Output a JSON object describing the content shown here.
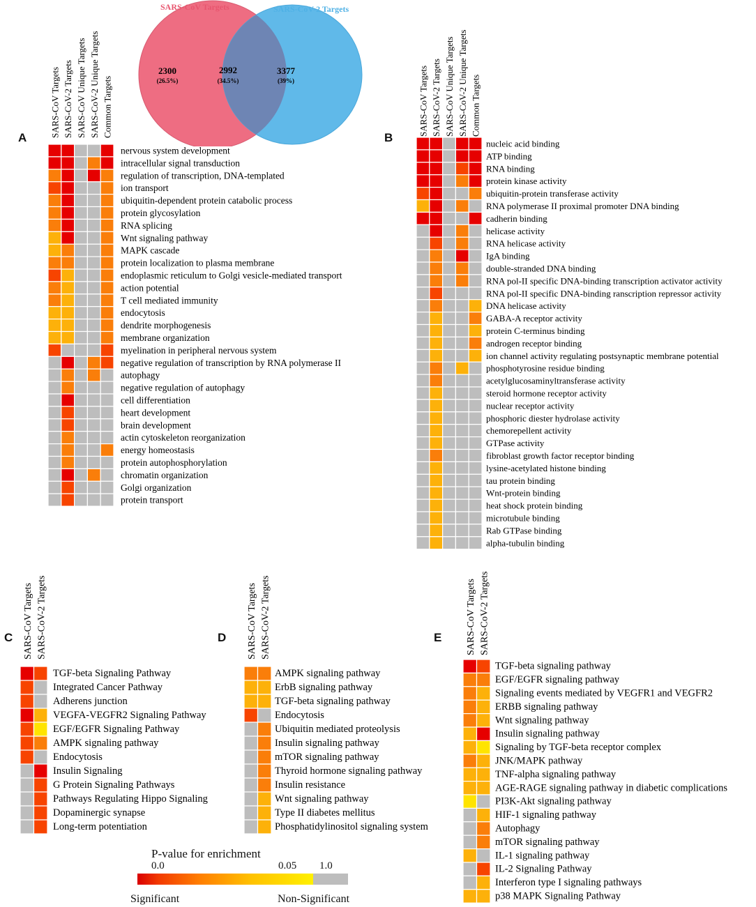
{
  "colors": {
    "sig_strong": "#e60000",
    "sig_orange_red": "#f74400",
    "sig_orange": "#fa7e0a",
    "sig_amber": "#fdb10a",
    "sig_yellow": "#ffe400",
    "non_sig": "#bdbdbd",
    "venn_left": "#ee6d82",
    "venn_right": "#60b9e9",
    "venn_overlap": "#6e85b4",
    "venn_left_title": "#e8566f",
    "venn_right_title": "#4fb1e5"
  },
  "venn": {
    "left_title": "SARS-CoV Targets",
    "right_title": "SARS-CoV-2 Targets",
    "left_count": "2300",
    "left_pct": "(26.5%)",
    "overlap_count": "2992",
    "overlap_pct": "(34.5%)",
    "right_count": "3377",
    "right_pct": "(39%)"
  },
  "legend": {
    "title": "P-value for enrichment",
    "tick_low": "0.0",
    "tick_mid": "0.05",
    "tick_high": "1.0",
    "label_sig": "Significant",
    "label_nonsig": "Non-Significant"
  },
  "chart_data": [
    {
      "type": "heatmap",
      "panel": "A",
      "color_key": {
        "R": "strongly significant (red)",
        "Q": "orange-red",
        "O": "orange",
        "M": "amber",
        "Y": "yellow",
        "G": "non-significant (grey)"
      },
      "columns": [
        "SARS-CoV Targets",
        "SARS-CoV-2 Targets",
        "SARS-CoV Unique Targets",
        "SARS-CoV-2 Unique Targets",
        "Common Targets"
      ],
      "rows": [
        {
          "label": "nervous system development",
          "cells": [
            "R",
            "R",
            "G",
            "G",
            "R"
          ]
        },
        {
          "label": "intracellular signal transduction",
          "cells": [
            "R",
            "R",
            "G",
            "O",
            "R"
          ]
        },
        {
          "label": "regulation of transcription, DNA-templated",
          "cells": [
            "O",
            "R",
            "G",
            "R",
            "O"
          ]
        },
        {
          "label": "ion transport",
          "cells": [
            "Q",
            "R",
            "G",
            "G",
            "O"
          ]
        },
        {
          "label": "ubiquitin-dependent protein catabolic process",
          "cells": [
            "O",
            "R",
            "G",
            "G",
            "O"
          ]
        },
        {
          "label": "protein glycosylation",
          "cells": [
            "O",
            "R",
            "G",
            "G",
            "O"
          ]
        },
        {
          "label": "RNA splicing",
          "cells": [
            "O",
            "R",
            "G",
            "G",
            "O"
          ]
        },
        {
          "label": "Wnt signaling pathway",
          "cells": [
            "M",
            "R",
            "G",
            "G",
            "O"
          ]
        },
        {
          "label": "MAPK cascade",
          "cells": [
            "M",
            "O",
            "G",
            "G",
            "O"
          ]
        },
        {
          "label": "protein localization to plasma membrane",
          "cells": [
            "O",
            "O",
            "G",
            "G",
            "O"
          ]
        },
        {
          "label": "endoplasmic reticulum to Golgi vesicle-mediated transport",
          "cells": [
            "Q",
            "M",
            "G",
            "G",
            "O"
          ]
        },
        {
          "label": "action potential",
          "cells": [
            "O",
            "M",
            "G",
            "G",
            "O"
          ]
        },
        {
          "label": "T cell mediated immunity",
          "cells": [
            "O",
            "M",
            "G",
            "G",
            "O"
          ]
        },
        {
          "label": "endocytosis",
          "cells": [
            "M",
            "M",
            "G",
            "G",
            "O"
          ]
        },
        {
          "label": "dendrite morphogenesis",
          "cells": [
            "M",
            "M",
            "G",
            "G",
            "O"
          ]
        },
        {
          "label": "membrane organization",
          "cells": [
            "M",
            "M",
            "G",
            "G",
            "O"
          ]
        },
        {
          "label": "myelination in peripheral nervous system",
          "cells": [
            "Q",
            "G",
            "G",
            "G",
            "Q"
          ]
        },
        {
          "label": "negative regulation of transcription by RNA polymerase II",
          "cells": [
            "G",
            "R",
            "G",
            "O",
            "Q"
          ]
        },
        {
          "label": "autophagy",
          "cells": [
            "G",
            "O",
            "G",
            "O",
            "G"
          ]
        },
        {
          "label": "negative regulation of autophagy",
          "cells": [
            "G",
            "O",
            "G",
            "G",
            "G"
          ]
        },
        {
          "label": "cell differentiation",
          "cells": [
            "G",
            "R",
            "G",
            "G",
            "G"
          ]
        },
        {
          "label": "heart development",
          "cells": [
            "G",
            "Q",
            "G",
            "G",
            "G"
          ]
        },
        {
          "label": "brain development",
          "cells": [
            "G",
            "Q",
            "G",
            "G",
            "G"
          ]
        },
        {
          "label": "actin cytoskeleton reorganization",
          "cells": [
            "G",
            "O",
            "G",
            "G",
            "G"
          ]
        },
        {
          "label": "energy homeostasis",
          "cells": [
            "G",
            "O",
            "G",
            "G",
            "O"
          ]
        },
        {
          "label": "protein autophosphorylation",
          "cells": [
            "G",
            "O",
            "G",
            "G",
            "G"
          ]
        },
        {
          "label": "chromatin organization",
          "cells": [
            "G",
            "R",
            "G",
            "O",
            "G"
          ]
        },
        {
          "label": "Golgi organization",
          "cells": [
            "G",
            "Q",
            "G",
            "G",
            "G"
          ]
        },
        {
          "label": "protein transport",
          "cells": [
            "G",
            "Q",
            "G",
            "G",
            "G"
          ]
        }
      ]
    },
    {
      "type": "heatmap",
      "panel": "B",
      "columns": [
        "SARS-CoV Targets",
        "SARS-CoV-2 Targets",
        "SARS-CoV Unique Targets",
        "SARS-CoV-2 Unique Targets",
        "Common Targets"
      ],
      "rows": [
        {
          "label": "nucleic acid binding",
          "cells": [
            "R",
            "R",
            "G",
            "R",
            "R"
          ]
        },
        {
          "label": "ATP binding",
          "cells": [
            "R",
            "R",
            "G",
            "R",
            "R"
          ]
        },
        {
          "label": "RNA binding",
          "cells": [
            "R",
            "R",
            "G",
            "Q",
            "R"
          ]
        },
        {
          "label": "protein kinase activity",
          "cells": [
            "R",
            "R",
            "G",
            "O",
            "R"
          ]
        },
        {
          "label": "ubiquitin-protein transferase activity",
          "cells": [
            "Q",
            "R",
            "G",
            "G",
            "O"
          ]
        },
        {
          "label": " RNA polymerase II proximal promoter DNA binding",
          "cells": [
            "M",
            "R",
            "G",
            "O",
            "G"
          ]
        },
        {
          "label": "cadherin binding",
          "cells": [
            "R",
            "R",
            "G",
            "G",
            "R"
          ]
        },
        {
          "label": "helicase activity",
          "cells": [
            "G",
            "R",
            "G",
            "O",
            "G"
          ]
        },
        {
          "label": "RNA helicase activity",
          "cells": [
            "G",
            "Q",
            "G",
            "O",
            "G"
          ]
        },
        {
          "label": "IgA binding",
          "cells": [
            "G",
            "O",
            "G",
            "R",
            "G"
          ]
        },
        {
          "label": "double-stranded DNA binding",
          "cells": [
            "G",
            "O",
            "G",
            "O",
            "G"
          ]
        },
        {
          "label": "RNA pol-II specific DNA-binding transcription activator activity",
          "cells": [
            "G",
            "O",
            "G",
            "O",
            "G"
          ]
        },
        {
          "label": " RNA pol-II specific DNA-binding ranscription repressor activity",
          "cells": [
            "G",
            "Q",
            "G",
            "G",
            "G"
          ]
        },
        {
          "label": "DNA helicase activity",
          "cells": [
            "G",
            "O",
            "G",
            "G",
            "M"
          ]
        },
        {
          "label": "GABA-A receptor activity",
          "cells": [
            "G",
            "M",
            "G",
            "G",
            "O"
          ]
        },
        {
          "label": "protein C-terminus binding",
          "cells": [
            "G",
            "M",
            "G",
            "G",
            "M"
          ]
        },
        {
          "label": "androgen receptor binding",
          "cells": [
            "G",
            "M",
            "G",
            "G",
            "O"
          ]
        },
        {
          "label": "ion channel activity regulating postsynaptic membrane potential",
          "cells": [
            "G",
            "M",
            "G",
            "G",
            "M"
          ]
        },
        {
          "label": "phosphotyrosine residue binding",
          "cells": [
            "G",
            "O",
            "G",
            "M",
            "G"
          ]
        },
        {
          "label": "acetylglucosaminyltransferase activity",
          "cells": [
            "G",
            "O",
            "G",
            "G",
            "G"
          ]
        },
        {
          "label": "steroid hormone receptor activity",
          "cells": [
            "G",
            "M",
            "G",
            "G",
            "G"
          ]
        },
        {
          "label": "nuclear receptor activity",
          "cells": [
            "G",
            "M",
            "G",
            "G",
            "G"
          ]
        },
        {
          "label": "phosphoric diester hydrolase activity",
          "cells": [
            "G",
            "M",
            "G",
            "G",
            "G"
          ]
        },
        {
          "label": "chemorepellent activity",
          "cells": [
            "G",
            "M",
            "G",
            "G",
            "G"
          ]
        },
        {
          "label": "GTPase activity",
          "cells": [
            "G",
            "M",
            "G",
            "G",
            "G"
          ]
        },
        {
          "label": "fibroblast growth factor receptor binding",
          "cells": [
            "G",
            "O",
            "G",
            "G",
            "G"
          ]
        },
        {
          "label": "lysine-acetylated histone binding",
          "cells": [
            "G",
            "M",
            "G",
            "G",
            "G"
          ]
        },
        {
          "label": "tau protein binding",
          "cells": [
            "G",
            "M",
            "G",
            "G",
            "G"
          ]
        },
        {
          "label": "Wnt-protein binding",
          "cells": [
            "G",
            "M",
            "G",
            "G",
            "G"
          ]
        },
        {
          "label": "heat shock protein binding",
          "cells": [
            "G",
            "M",
            "G",
            "G",
            "G"
          ]
        },
        {
          "label": "microtubule binding",
          "cells": [
            "G",
            "M",
            "G",
            "G",
            "G"
          ]
        },
        {
          "label": "Rab GTPase binding",
          "cells": [
            "G",
            "M",
            "G",
            "G",
            "G"
          ]
        },
        {
          "label": "alpha-tubulin binding",
          "cells": [
            "G",
            "M",
            "G",
            "G",
            "G"
          ]
        }
      ]
    },
    {
      "type": "heatmap",
      "panel": "C",
      "columns": [
        "SARS-CoV Targets",
        "SARS-CoV-2 Targets"
      ],
      "rows": [
        {
          "label": "TGF-beta Signaling Pathway",
          "cells": [
            "R",
            "Q"
          ]
        },
        {
          "label": "Integrated Cancer Pathway",
          "cells": [
            "Q",
            "G"
          ]
        },
        {
          "label": "Adherens junction",
          "cells": [
            "Q",
            "G"
          ]
        },
        {
          "label": "VEGFA-VEGFR2 Signaling Pathway",
          "cells": [
            "R",
            "M"
          ]
        },
        {
          "label": "EGF/EGFR Signaling Pathway",
          "cells": [
            "Q",
            "Y"
          ]
        },
        {
          "label": "AMPK signaling pathway",
          "cells": [
            "Q",
            "O"
          ]
        },
        {
          "label": "Endocytosis",
          "cells": [
            "Q",
            "G"
          ]
        },
        {
          "label": "Insulin Signaling",
          "cells": [
            "G",
            "R"
          ]
        },
        {
          "label": "G Protein Signaling Pathways",
          "cells": [
            "G",
            "Q"
          ]
        },
        {
          "label": "Pathways Regulating Hippo Signaling",
          "cells": [
            "G",
            "Q"
          ]
        },
        {
          "label": "Dopaminergic synapse",
          "cells": [
            "G",
            "Q"
          ]
        },
        {
          "label": "Long-term potentiation",
          "cells": [
            "G",
            "Q"
          ]
        }
      ]
    },
    {
      "type": "heatmap",
      "panel": "D",
      "columns": [
        "SARS-CoV Targets",
        "SARS-CoV-2 Targets"
      ],
      "rows": [
        {
          "label": "AMPK signaling pathway",
          "cells": [
            "O",
            "O"
          ]
        },
        {
          "label": "ErbB signaling pathway",
          "cells": [
            "M",
            "M"
          ]
        },
        {
          "label": "TGF-beta signaling pathway",
          "cells": [
            "M",
            "M"
          ]
        },
        {
          "label": "Endocytosis",
          "cells": [
            "Q",
            "G"
          ]
        },
        {
          "label": "Ubiquitin mediated proteolysis",
          "cells": [
            "G",
            "O"
          ]
        },
        {
          "label": "Insulin signaling pathway",
          "cells": [
            "G",
            "O"
          ]
        },
        {
          "label": "mTOR signaling pathway",
          "cells": [
            "G",
            "O"
          ]
        },
        {
          "label": "Thyroid hormone signaling pathway",
          "cells": [
            "G",
            "O"
          ]
        },
        {
          "label": "Insulin resistance",
          "cells": [
            "G",
            "O"
          ]
        },
        {
          "label": "Wnt signaling pathway",
          "cells": [
            "G",
            "M"
          ]
        },
        {
          "label": "Type II diabetes mellitus",
          "cells": [
            "G",
            "M"
          ]
        },
        {
          "label": "Phosphatidylinositol signaling system",
          "cells": [
            "G",
            "M"
          ]
        }
      ]
    },
    {
      "type": "heatmap",
      "panel": "E",
      "columns": [
        "SARS-CoV Targets",
        "SARS-CoV-2 Targets"
      ],
      "rows": [
        {
          "label": "TGF-beta signaling pathway",
          "cells": [
            "R",
            "Q"
          ]
        },
        {
          "label": "EGF/EGFR signaling pathway",
          "cells": [
            "O",
            "O"
          ]
        },
        {
          "label": "Signaling events mediated by VEGFR1 and VEGFR2",
          "cells": [
            "O",
            "M"
          ]
        },
        {
          "label": "ERBB signaling pathway",
          "cells": [
            "O",
            "M"
          ]
        },
        {
          "label": "Wnt signaling pathway",
          "cells": [
            "O",
            "M"
          ]
        },
        {
          "label": "Insulin signaling pathway",
          "cells": [
            "M",
            "R"
          ]
        },
        {
          "label": "Signaling by TGF-beta receptor complex",
          "cells": [
            "M",
            "Y"
          ]
        },
        {
          "label": "JNK/MAPK pathway",
          "cells": [
            "O",
            "M"
          ]
        },
        {
          "label": "TNF-alpha signaling pathway",
          "cells": [
            "M",
            "M"
          ]
        },
        {
          "label": "AGE-RAGE signaling pathway in diabetic complications",
          "cells": [
            "M",
            "M"
          ]
        },
        {
          "label": "PI3K-Akt signaling pathway",
          "cells": [
            "Y",
            "G"
          ]
        },
        {
          "label": "HIF-1 signaling pathway",
          "cells": [
            "G",
            "M"
          ]
        },
        {
          "label": "Autophagy",
          "cells": [
            "G",
            "O"
          ]
        },
        {
          "label": "mTOR signaling pathway",
          "cells": [
            "G",
            "O"
          ]
        },
        {
          "label": "IL-1 signaling pathway",
          "cells": [
            "M",
            "G"
          ]
        },
        {
          "label": "IL-2 Signaling Pathway",
          "cells": [
            "G",
            "Q"
          ]
        },
        {
          "label": "Interferon type I signaling pathways",
          "cells": [
            "G",
            "M"
          ]
        },
        {
          "label": "p38 MAPK Signaling Pathway",
          "cells": [
            "M",
            "M"
          ]
        }
      ]
    }
  ]
}
